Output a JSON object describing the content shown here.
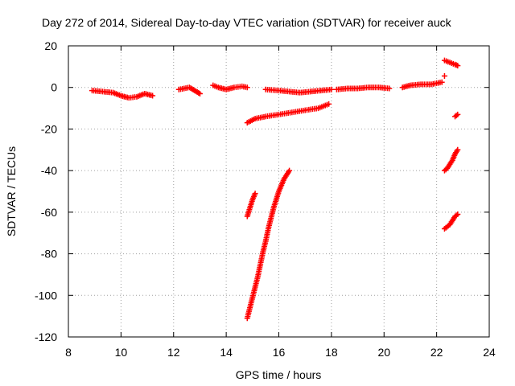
{
  "chart_data": {
    "type": "scatter",
    "title": "Day 272 of 2014, Sidereal Day-to-day VTEC variation (SDTVAR) for receiver auck",
    "xlabel": "GPS time / hours",
    "ylabel": "SDTVAR / TECUs",
    "xlim": [
      8,
      24
    ],
    "ylim": [
      -120,
      20
    ],
    "xticks": [
      8,
      10,
      12,
      14,
      16,
      18,
      20,
      22,
      24
    ],
    "yticks": [
      20,
      0,
      -20,
      -40,
      -60,
      -80,
      -100,
      -120
    ],
    "grid": true,
    "marker": "+",
    "color": "#ff0000",
    "series": [
      {
        "x": [
          8.9,
          9.3,
          9.7,
          10.0,
          10.3,
          10.6,
          10.9,
          11.2
        ],
        "y": [
          -1.5,
          -2.0,
          -2.5,
          -4.0,
          -5.0,
          -4.5,
          -3.0,
          -4.0
        ]
      },
      {
        "x": [
          12.2,
          12.4,
          12.6,
          12.8,
          13.0
        ],
        "y": [
          -1.0,
          -0.5,
          0.0,
          -1.5,
          -3.0
        ]
      },
      {
        "x": [
          13.5,
          13.7,
          14.0,
          14.3,
          14.6,
          14.8
        ],
        "y": [
          1.0,
          0.0,
          -1.0,
          0.0,
          0.5,
          0.0
        ]
      },
      {
        "x": [
          15.5,
          16.0,
          16.4,
          16.8,
          17.2,
          17.6,
          18.0
        ],
        "y": [
          -1.0,
          -1.5,
          -2.0,
          -2.5,
          -2.0,
          -1.5,
          -1.0
        ]
      },
      {
        "x": [
          18.2,
          18.6,
          19.0,
          19.4,
          19.8,
          20.2
        ],
        "y": [
          -1.0,
          -0.5,
          -0.5,
          0.0,
          0.0,
          -0.5
        ]
      },
      {
        "x": [
          20.7,
          21.0,
          21.4,
          21.8,
          22.2
        ],
        "y": [
          0.0,
          1.0,
          1.5,
          1.5,
          2.5
        ]
      },
      {
        "x": [
          14.8,
          15.1,
          15.5,
          16.0,
          16.5,
          17.0,
          17.5,
          17.9
        ],
        "y": [
          -17.0,
          -15.0,
          -14.0,
          -13.0,
          -12.0,
          -11.0,
          -10.0,
          -8.0
        ]
      },
      {
        "x": [
          14.8,
          14.9,
          15.0,
          15.1
        ],
        "y": [
          -62.0,
          -58.0,
          -54.0,
          -51.0
        ]
      },
      {
        "x": [
          14.8,
          14.9,
          15.0,
          15.1,
          15.2,
          15.3,
          15.4,
          15.5,
          15.6,
          15.7,
          15.8,
          15.9,
          16.0,
          16.1,
          16.2,
          16.3,
          16.4
        ],
        "y": [
          -111.0,
          -106.0,
          -101.0,
          -96.0,
          -91.0,
          -85.0,
          -79.0,
          -74.0,
          -68.0,
          -63.0,
          -58.0,
          -54.0,
          -50.0,
          -47.0,
          -44.0,
          -42.0,
          -40.0
        ]
      },
      {
        "x": [
          22.3,
          22.5,
          22.7,
          22.8
        ],
        "y": [
          13.0,
          12.0,
          11.0,
          10.5
        ]
      },
      {
        "x": [
          22.3
        ],
        "y": [
          5.5
        ]
      },
      {
        "x": [
          22.7,
          22.8
        ],
        "y": [
          -14.0,
          -13.0
        ]
      },
      {
        "x": [
          22.3,
          22.4,
          22.5,
          22.6,
          22.7,
          22.8
        ],
        "y": [
          -40.0,
          -39.0,
          -37.0,
          -35.0,
          -32.0,
          -30.0
        ]
      },
      {
        "x": [
          22.3,
          22.4,
          22.5,
          22.6,
          22.7,
          22.8
        ],
        "y": [
          -68.0,
          -67.0,
          -66.0,
          -64.0,
          -62.0,
          -61.0
        ]
      }
    ]
  }
}
